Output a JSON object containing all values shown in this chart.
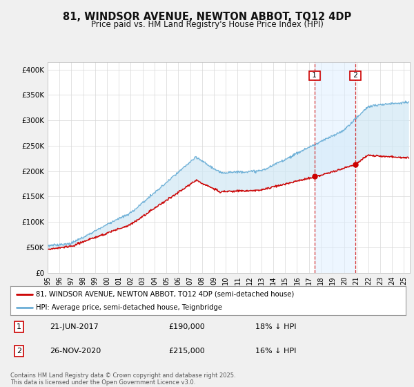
{
  "title": "81, WINDSOR AVENUE, NEWTON ABBOT, TQ12 4DP",
  "subtitle": "Price paid vs. HM Land Registry's House Price Index (HPI)",
  "ylabel_ticks": [
    "£0",
    "£50K",
    "£100K",
    "£150K",
    "£200K",
    "£250K",
    "£300K",
    "£350K",
    "£400K"
  ],
  "ytick_values": [
    0,
    50000,
    100000,
    150000,
    200000,
    250000,
    300000,
    350000,
    400000
  ],
  "ylim": [
    0,
    415000
  ],
  "xlim_start": 1995.3,
  "xlim_end": 2025.5,
  "hpi_color": "#6aaed6",
  "price_color": "#cc0000",
  "fill_color": "#d0e8f5",
  "marker1_date": 2017.47,
  "marker2_date": 2020.92,
  "legend1": "81, WINDSOR AVENUE, NEWTON ABBOT, TQ12 4DP (semi-detached house)",
  "legend2": "HPI: Average price, semi-detached house, Teignbridge",
  "footnote": "Contains HM Land Registry data © Crown copyright and database right 2025.\nThis data is licensed under the Open Government Licence v3.0.",
  "background_color": "#f0f0f0",
  "plot_bg_color": "#ffffff",
  "grid_color": "#d8d8d8"
}
